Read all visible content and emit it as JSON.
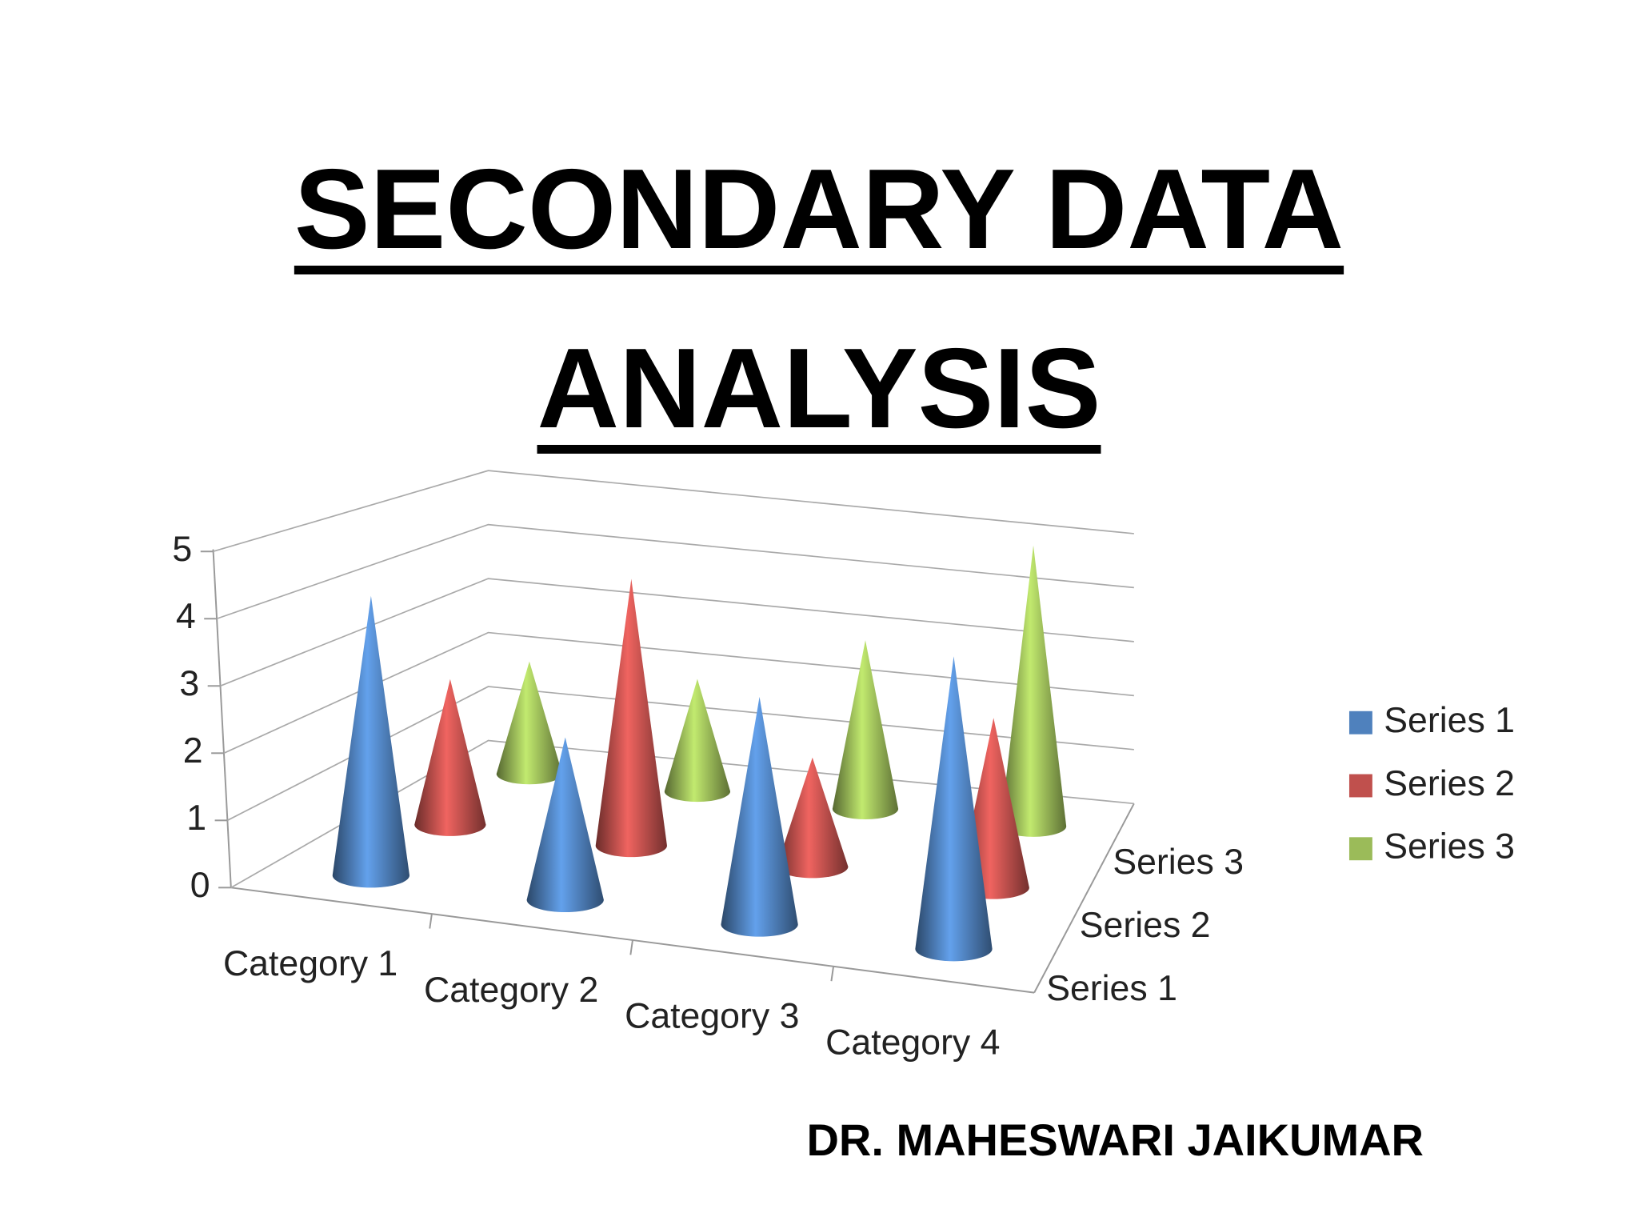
{
  "slide": {
    "title": "SECONDARY DATA ANALYSIS",
    "author": "DR. MAHESWARI JAIKUMAR"
  },
  "chart_data": {
    "type": "cone3d",
    "categories": [
      "Category 1",
      "Category 2",
      "Category 3",
      "Category 4"
    ],
    "series": [
      {
        "name": "Series 1",
        "color": "#4f81bd",
        "values": [
          4.3,
          2.5,
          3.5,
          4.5
        ]
      },
      {
        "name": "Series 2",
        "color": "#c0504d",
        "values": [
          2.4,
          4.4,
          1.8,
          2.8
        ]
      },
      {
        "name": "Series 3",
        "color": "#9bbb59",
        "values": [
          2,
          2,
          3,
          5
        ]
      }
    ],
    "ylim": [
      0,
      5
    ],
    "yticks": [
      0,
      1,
      2,
      3,
      4,
      5
    ],
    "grid": true,
    "legend": "right"
  }
}
